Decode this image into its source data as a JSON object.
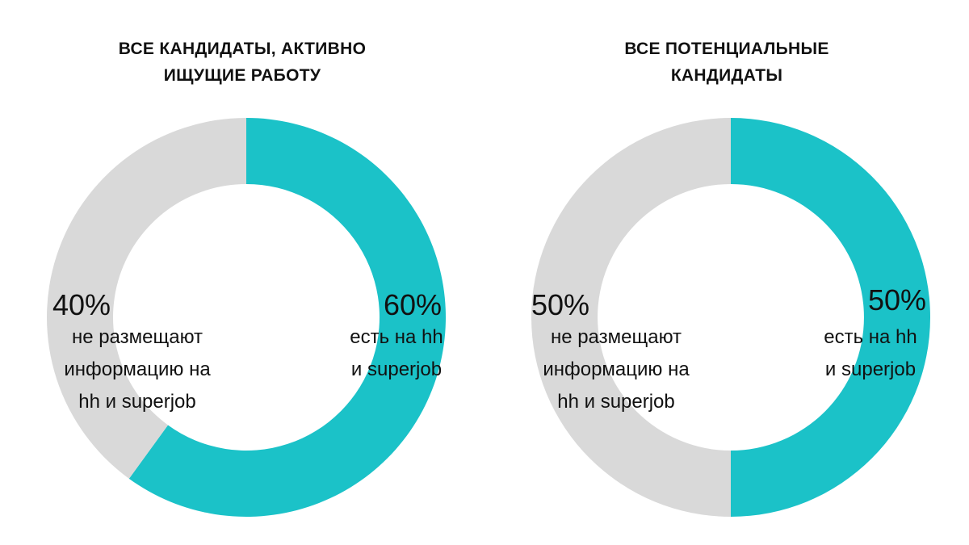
{
  "colors": {
    "highlight": "#1bc2c8",
    "rest": "#d9d9d9",
    "text": "#111111"
  },
  "chart_data": [
    {
      "type": "pie",
      "variant": "donut",
      "title_lines": [
        "ВСЕ КАНДИДАТЫ, АКТИВНО",
        "ИЩУЩИЕ РАБОТУ"
      ],
      "slices": [
        {
          "value": 60,
          "label": "60%",
          "description_lines": [
            "есть на hh",
            "и superjob"
          ],
          "color": "#1bc2c8"
        },
        {
          "value": 40,
          "label": "40%",
          "description_lines": [
            "не размещают",
            "информацию на",
            "hh и superjob"
          ],
          "color": "#d9d9d9"
        }
      ]
    },
    {
      "type": "pie",
      "variant": "donut",
      "title_lines": [
        "ВСЕ ПОТЕНЦИАЛЬНЫЕ",
        "КАНДИДАТЫ"
      ],
      "slices": [
        {
          "value": 50,
          "label": "50%",
          "description_lines": [
            "есть на hh",
            "и superjob"
          ],
          "color": "#1bc2c8"
        },
        {
          "value": 50,
          "label": "50%",
          "description_lines": [
            "не размещают",
            "информацию на",
            "hh и superjob"
          ],
          "color": "#d9d9d9"
        }
      ]
    }
  ]
}
